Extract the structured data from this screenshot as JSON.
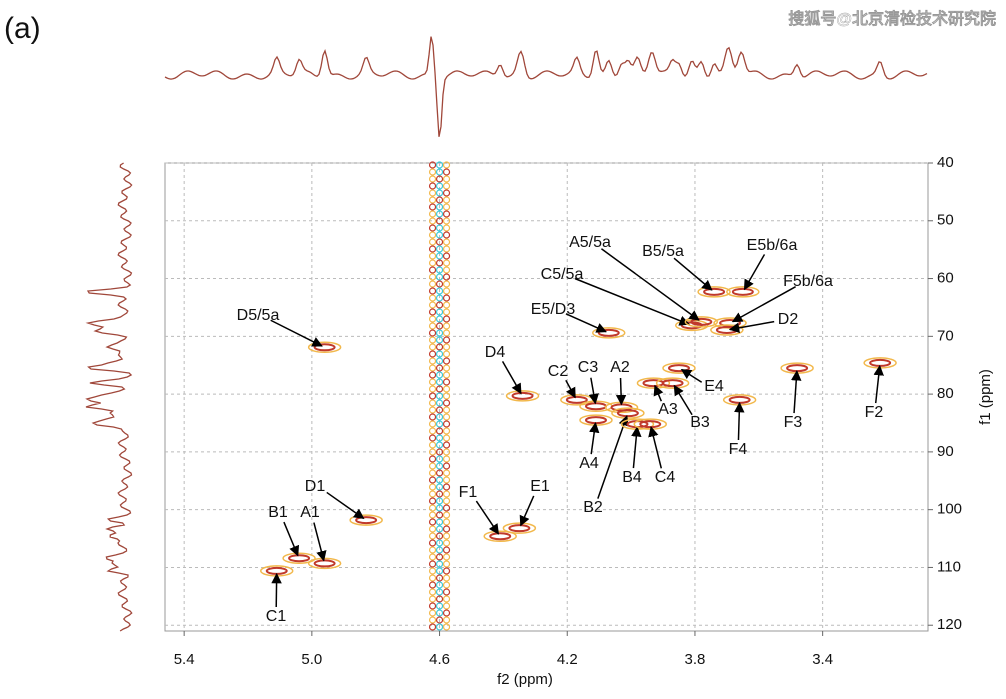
{
  "panel_label": "(a)",
  "watermark": "搜狐号@北京清检技术研究院",
  "chart_data": {
    "type": "hsqc",
    "x_label": "f2 (ppm)",
    "y_label": "f1 (ppm)",
    "xlim": [
      5.46,
      3.07
    ],
    "ylim": [
      40,
      121
    ],
    "xticks": [
      5.4,
      {
        "value": 5,
        "label": "5.0"
      },
      4.6,
      4.2,
      3.8,
      3.4
    ],
    "yticks": [
      40,
      50,
      60,
      70,
      80,
      90,
      100,
      110,
      120
    ],
    "grid": true,
    "color": "#c0392b",
    "halo_color": "#f2b84b",
    "solvent_color": "#3cc8d8",
    "labels": [
      "D5/5a",
      "D1",
      "B1",
      "A1",
      "C1",
      "F1",
      "E1",
      "D4",
      "C2",
      "C3",
      "A2",
      "A4",
      "B2",
      "B4",
      "C4",
      "A3",
      "B3",
      "E4",
      "E5/D3",
      "C5/5a",
      "A5/5a",
      "B5/5a",
      "E5b/6a",
      "F5b/6a",
      "D2",
      "F4",
      "F3",
      "F2"
    ],
    "x": [
      4.96,
      4.83,
      5.04,
      4.96,
      5.11,
      4.41,
      4.35,
      4.34,
      4.17,
      4.11,
      4.03,
      4.11,
      4.01,
      3.98,
      3.94,
      3.93,
      3.87,
      3.85,
      4.07,
      3.81,
      3.78,
      3.74,
      3.65,
      3.69,
      3.7,
      3.66,
      3.48,
      3.22
    ],
    "y": [
      71.9,
      101.8,
      108.4,
      109.3,
      110.6,
      104.6,
      103.2,
      80.3,
      81,
      82.1,
      82.3,
      84.5,
      83.3,
      85.2,
      85.2,
      78.1,
      78.1,
      75.5,
      69.4,
      68.1,
      67.5,
      62.3,
      62.3,
      67.7,
      68.9,
      81,
      75.5,
      74.6
    ]
  }
}
